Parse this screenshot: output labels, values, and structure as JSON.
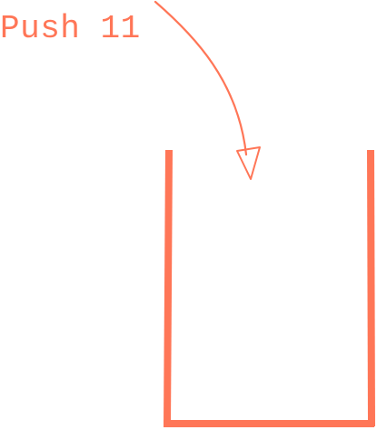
{
  "operation": {
    "label": "Push 11"
  },
  "colors": {
    "accent": "#FF7657",
    "background": "#FFFFFF"
  },
  "icons": {
    "arrow": "curved-arrow-down-icon",
    "stack": "empty-stack-container"
  }
}
